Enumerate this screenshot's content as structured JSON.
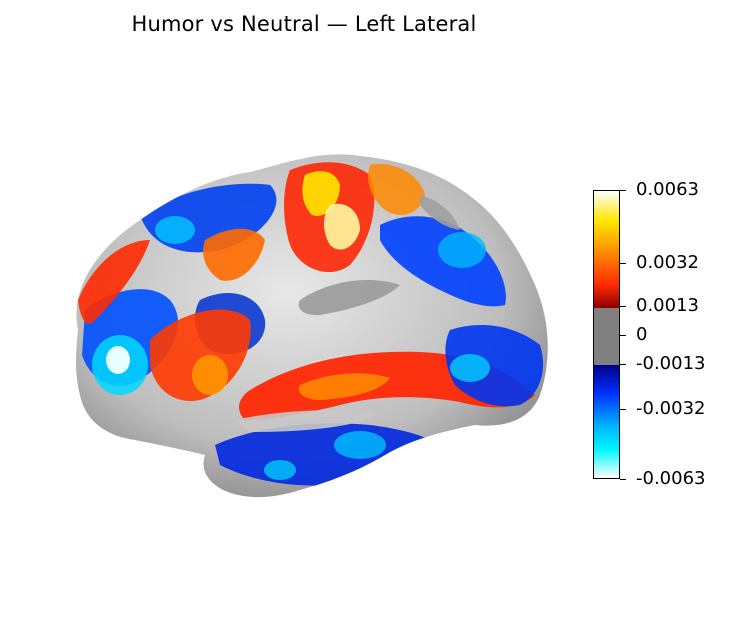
{
  "title": "Humor vs Neutral — Left Lateral",
  "colorbar": {
    "ticks": [
      "0.0063",
      "0.0032",
      "0.0013",
      "0",
      "-0.0013",
      "-0.0032",
      "-0.0063"
    ],
    "threshold": 0.0013,
    "vmin": -0.0063,
    "vmax": 0.0063,
    "positive_colors": [
      "#8b0000",
      "#ff2a00",
      "#ff9400",
      "#ffe800",
      "#ffffff"
    ],
    "negative_colors": [
      "#00008b",
      "#0030ff",
      "#00b8ff",
      "#00f6ff",
      "#ffffff"
    ],
    "subthreshold_color": "#808080"
  }
}
